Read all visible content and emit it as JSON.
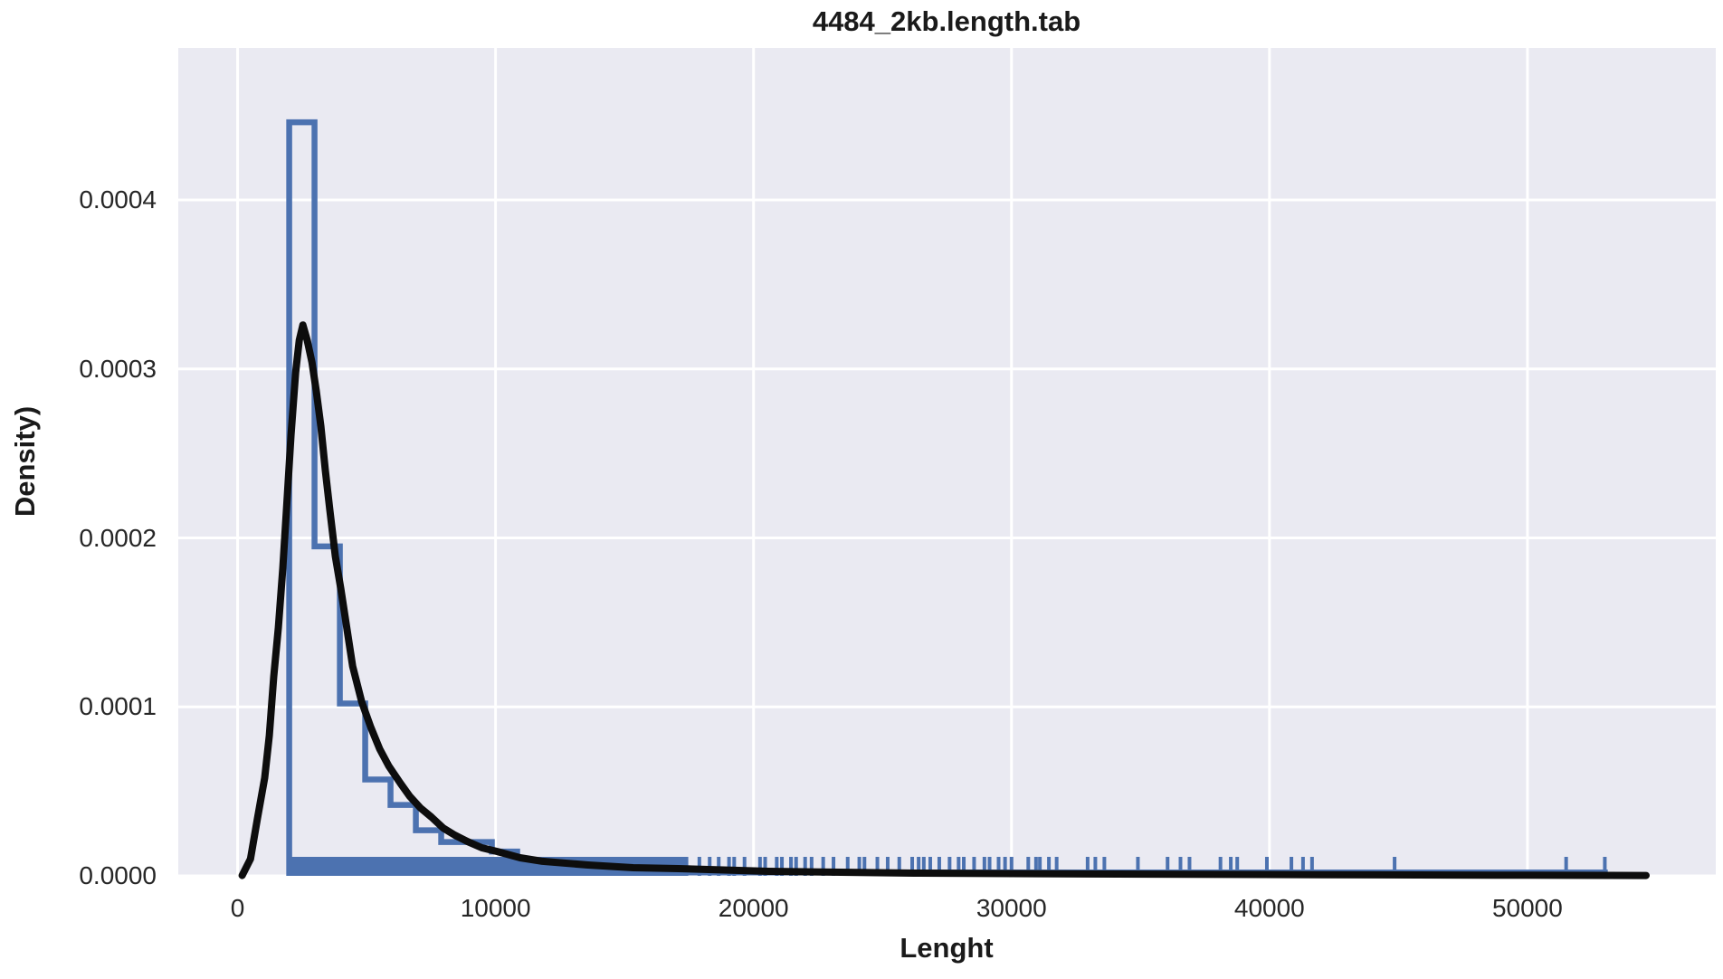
{
  "chart_data": {
    "type": "histogram",
    "overlays": [
      "kde",
      "rug"
    ],
    "title": "4484_2kb.length.tab",
    "xlabel": "Lenght",
    "ylabel": "Density)",
    "x_tick_labels": [
      "0",
      "10000",
      "20000",
      "30000",
      "40000",
      "50000"
    ],
    "x_tick_values": [
      0,
      10000,
      20000,
      30000,
      40000,
      50000
    ],
    "y_tick_labels": [
      "0.0000",
      "0.0001",
      "0.0002",
      "0.0003",
      "0.0004"
    ],
    "y_tick_values": [
      0,
      0.0001,
      0.0002,
      0.0003,
      0.0004
    ],
    "xlim": [
      -2300,
      57300
    ],
    "ylim": [
      0,
      0.00049
    ],
    "grid": true,
    "legend": "none",
    "colors": {
      "background": "#EAEAF2",
      "grid": "#FFFFFF",
      "hist": "#4C72B0",
      "rug": "#4C72B0",
      "kde": "#0d0d0d",
      "text": "#262626"
    },
    "hist": {
      "bin_start": 2000,
      "bin_width": 982,
      "densities": [
        0.000446,
        0.000195,
        0.000102,
        5.7e-05,
        4.2e-05,
        2.7e-05,
        2e-05,
        2e-05,
        1.44e-05
      ],
      "tail_density": 2e-06,
      "tail_end": 53000
    },
    "kde_points": [
      [
        175,
        2e-07
      ],
      [
        500,
        1e-05
      ],
      [
        770,
        3.4e-05
      ],
      [
        1050,
        5.8e-05
      ],
      [
        1230,
        8.3e-05
      ],
      [
        1400,
        0.000118
      ],
      [
        1580,
        0.000147
      ],
      [
        1750,
        0.000182
      ],
      [
        1900,
        0.000218
      ],
      [
        2070,
        0.000261
      ],
      [
        2250,
        0.000298
      ],
      [
        2390,
        0.000317
      ],
      [
        2530,
        0.000326
      ],
      [
        2700,
        0.000317
      ],
      [
        2880,
        0.000304
      ],
      [
        3050,
        0.000287
      ],
      [
        3230,
        0.000266
      ],
      [
        3400,
        0.00024
      ],
      [
        3580,
        0.000216
      ],
      [
        3790,
        0.000189
      ],
      [
        4000,
        0.00017
      ],
      [
        4210,
        0.000149
      ],
      [
        4460,
        0.000124
      ],
      [
        4810,
        0.000103
      ],
      [
        5160,
        8.8e-05
      ],
      [
        5510,
        7.5e-05
      ],
      [
        5860,
        6.5e-05
      ],
      [
        6320,
        5.46e-05
      ],
      [
        6670,
        4.71e-05
      ],
      [
        7090,
        4.01e-05
      ],
      [
        7510,
        3.48e-05
      ],
      [
        7970,
        2.83e-05
      ],
      [
        8420,
        2.41e-05
      ],
      [
        8910,
        2.03e-05
      ],
      [
        9470,
        1.66e-05
      ],
      [
        10070,
        1.44e-05
      ],
      [
        10950,
        1.07e-05
      ],
      [
        11820,
        8.6e-06
      ],
      [
        13580,
        6.4e-06
      ],
      [
        15330,
        4.8e-06
      ],
      [
        17090,
        4.3e-06
      ],
      [
        20600,
        2.7e-06
      ],
      [
        26210,
        1.6e-06
      ],
      [
        32880,
        1.1e-06
      ],
      [
        42000,
        7e-07
      ],
      [
        50000,
        4e-07
      ],
      [
        54600,
        2e-07
      ]
    ],
    "rug": {
      "dense_from": 2000,
      "dense_to": 17300,
      "dense_step": 55,
      "marks": [
        17400,
        17900,
        18300,
        18650,
        19050,
        19250,
        19650,
        20250,
        20450,
        20900,
        21100,
        21450,
        21650,
        22000,
        22250,
        22700,
        23100,
        23650,
        24100,
        24300,
        24800,
        25200,
        25650,
        26150,
        26400,
        26600,
        26850,
        27200,
        27600,
        27950,
        28150,
        28550,
        28950,
        29150,
        29500,
        29750,
        30000,
        30650,
        30950,
        31100,
        31450,
        31750,
        32950,
        33250,
        33600,
        34900,
        36050,
        36550,
        36900,
        38100,
        38500,
        38750,
        39900,
        40850,
        41300,
        41650,
        44850,
        51500,
        53000
      ]
    }
  }
}
